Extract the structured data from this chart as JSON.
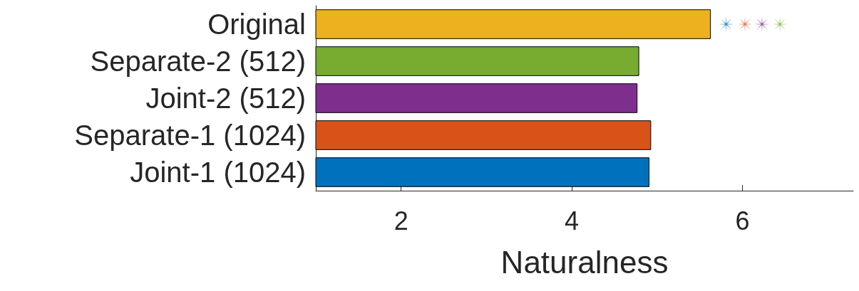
{
  "chart_data": {
    "type": "bar",
    "orientation": "horizontal",
    "xlabel": "Naturalness",
    "categories": [
      "Original",
      "Separate-2 (512)",
      "Joint-2 (512)",
      "Separate-1 (1024)",
      "Joint-1 (1024)"
    ],
    "values": [
      5.63,
      4.79,
      4.77,
      4.93,
      4.91
    ],
    "colors": [
      "#edb120",
      "#77ac30",
      "#7e2f8e",
      "#d95319",
      "#0072bd"
    ],
    "series": [
      {
        "type": "scatter",
        "x": [
          "Original"
        ],
        "values": [
          5.81
        ],
        "color": "#0072bd"
      },
      {
        "type": "scatter",
        "x": [
          "Original"
        ],
        "values": [
          6.03
        ],
        "color": "#d95319"
      },
      {
        "type": "scatter",
        "x": [
          "Original"
        ],
        "values": [
          6.23
        ],
        "color": "#7e2f8e"
      },
      {
        "type": "scatter",
        "x": [
          "Original"
        ],
        "values": [
          6.44
        ],
        "color": "#77ac30"
      }
    ],
    "marker": "star",
    "xlim": [
      1,
      7.3
    ],
    "xticks": [
      2,
      4,
      6
    ],
    "grid": false
  }
}
